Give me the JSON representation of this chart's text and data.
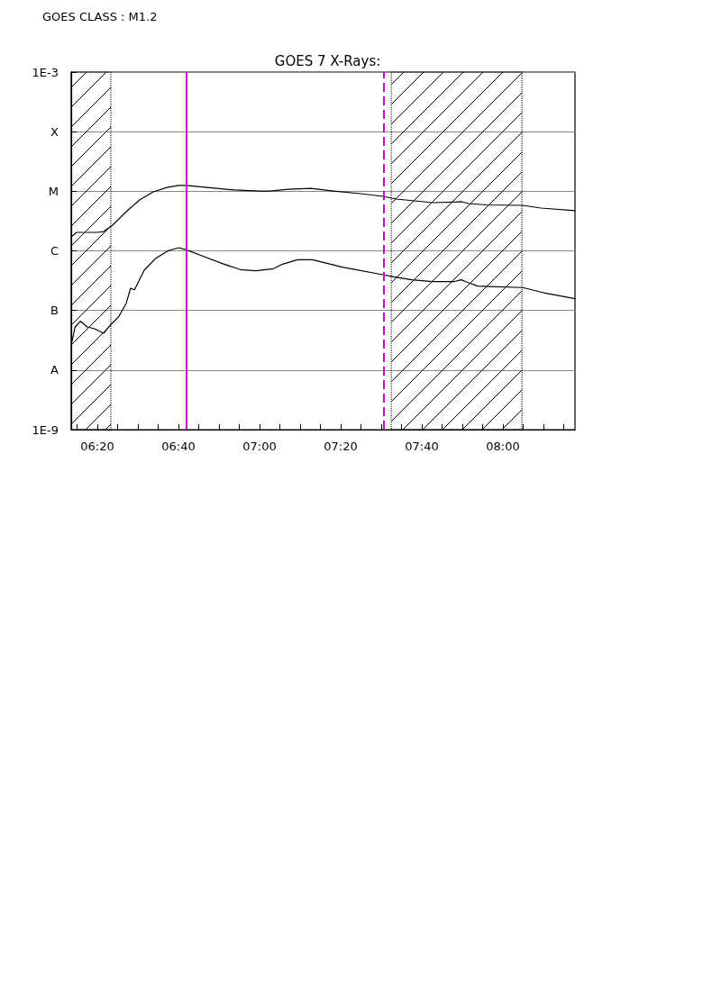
{
  "chart_data": {
    "type": "line",
    "title": "GOES 7 X-Rays:",
    "annotations": [
      "GOES CLASS : M1.2"
    ],
    "log": "y",
    "grid": "y",
    "marker": "none",
    "line_style": "solid",
    "xlim": [
      6.226,
      8.296
    ],
    "ylim": [
      1e-09,
      0.001
    ],
    "xticks": [
      {
        "value": 6.25,
        "label": null
      },
      {
        "value": 6.3333,
        "label": "06:20"
      },
      {
        "value": 6.4167,
        "label": null
      },
      {
        "value": 6.5,
        "label": null
      },
      {
        "value": 6.5833,
        "label": null
      },
      {
        "value": 6.6667,
        "label": "06:40"
      },
      {
        "value": 6.75,
        "label": null
      },
      {
        "value": 6.8333,
        "label": null
      },
      {
        "value": 6.9167,
        "label": null
      },
      {
        "value": 7.0,
        "label": "07:00"
      },
      {
        "value": 7.0833,
        "label": null
      },
      {
        "value": 7.1667,
        "label": null
      },
      {
        "value": 7.25,
        "label": null
      },
      {
        "value": 7.3333,
        "label": "07:20"
      },
      {
        "value": 7.4167,
        "label": null
      },
      {
        "value": 7.5,
        "label": null
      },
      {
        "value": 7.5833,
        "label": null
      },
      {
        "value": 7.6667,
        "label": "07:40"
      },
      {
        "value": 7.75,
        "label": null
      },
      {
        "value": 7.8333,
        "label": null
      },
      {
        "value": 7.9167,
        "label": null
      },
      {
        "value": 8.0,
        "label": "08:00"
      },
      {
        "value": 8.0833,
        "label": null
      },
      {
        "value": 8.1667,
        "label": null
      },
      {
        "value": 8.25,
        "label": null
      }
    ],
    "yticks": [
      {
        "value": 1e-09,
        "label": "1E-9"
      },
      {
        "value": 1e-08,
        "label": "A"
      },
      {
        "value": 1e-07,
        "label": "B"
      },
      {
        "value": 1e-06,
        "label": "C"
      },
      {
        "value": 1e-05,
        "label": "M"
      },
      {
        "value": 0.0001,
        "label": "X"
      },
      {
        "value": 0.001,
        "label": "1E-3"
      }
    ],
    "series": [
      {
        "color": "#000000",
        "x": [
          6.226,
          6.248,
          6.285,
          6.333,
          6.359,
          6.396,
          6.452,
          6.507,
          6.563,
          6.619,
          6.667,
          6.7,
          6.785,
          6.896,
          7.0,
          7.044,
          7.119,
          7.211,
          7.304,
          7.415,
          7.507,
          7.563,
          7.637,
          7.711,
          7.83,
          7.859,
          7.933,
          8.081,
          8.156,
          8.296
        ],
        "values": [
          1.71e-06,
          2.04e-06,
          2.04e-06,
          2.04e-06,
          2.11e-06,
          2.7e-06,
          4.55e-06,
          7.15e-06,
          9.77e-06,
          1.16e-05,
          1.25e-05,
          1.25e-05,
          1.16e-05,
          1.05e-05,
          1.01e-05,
          1.01e-05,
          1.08e-05,
          1.12e-05,
          1.01e-05,
          9.12e-06,
          8.21e-06,
          7.4e-06,
          6.9e-06,
          6.44e-06,
          6.67e-06,
          6.22e-06,
          5.9e-06,
          5.8e-06,
          5.22e-06,
          4.71e-06
        ]
      },
      {
        "color": "#000000",
        "x": [
          6.227,
          6.242,
          6.264,
          6.292,
          6.322,
          6.359,
          6.39,
          6.421,
          6.452,
          6.47,
          6.486,
          6.526,
          6.574,
          6.625,
          6.668,
          6.699,
          6.773,
          6.847,
          6.921,
          6.983,
          7.057,
          7.094,
          7.156,
          7.217,
          7.341,
          7.507,
          7.551,
          7.625,
          7.711,
          7.797,
          7.829,
          7.847,
          7.896,
          7.946,
          8.081,
          8.168,
          8.296
        ],
        "values": [
          2.76e-08,
          5.28e-08,
          6.58e-08,
          5.28e-08,
          4.93e-08,
          4.14e-08,
          5.87e-08,
          7.83e-08,
          1.32e-07,
          2.36e-07,
          2.22e-07,
          4.73e-07,
          7.52e-07,
          1.01e-06,
          1.13e-06,
          1.04e-06,
          7.98e-07,
          6.11e-07,
          4.85e-07,
          4.62e-07,
          5.02e-07,
          5.97e-07,
          7.11e-07,
          7.11e-07,
          5.31e-07,
          3.98e-07,
          3.67e-07,
          3.27e-07,
          3.04e-07,
          3.04e-07,
          3.27e-07,
          3.04e-07,
          2.56e-07,
          2.51e-07,
          2.42e-07,
          1.98e-07,
          1.57e-07
        ]
      }
    ],
    "ref_lines": [
      {
        "axis": "x",
        "value": 6.7,
        "color": "#cc00cc",
        "line_style": "solid"
      },
      {
        "axis": "x",
        "value": 7.507,
        "color": "#cc00cc",
        "line_style": "dashed"
      }
    ],
    "bands": [
      {
        "axis": "x",
        "from": 6.226,
        "to": 6.389,
        "color": "#000000"
      },
      {
        "axis": "x",
        "from": 7.541,
        "to": 8.078,
        "color": "#000000"
      }
    ]
  }
}
